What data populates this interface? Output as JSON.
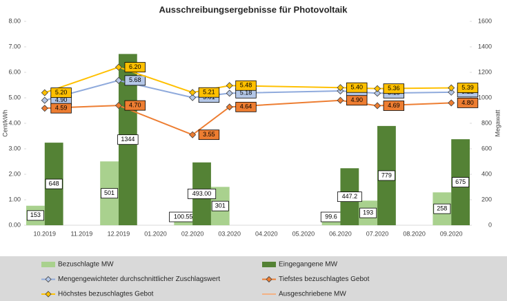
{
  "chart_data": {
    "type": "bar-line",
    "title": "Ausschreibungsergebnisse für Photovoltaik",
    "y_label": "Cent/kWh",
    "y2_label": "Megawatt",
    "categories": [
      "10.2019",
      "11.2019",
      "12.2019",
      "01.2020",
      "02.2020",
      "03.2020",
      "04.2020",
      "05.2020",
      "06.2020",
      "07.2020",
      "08.2020",
      "09.2020"
    ],
    "ylim": [
      0,
      8
    ],
    "yticks": [
      {
        "value": 0,
        "label": "0.00"
      },
      {
        "value": 1,
        "label": "1.00"
      },
      {
        "value": 2,
        "label": "2.00"
      },
      {
        "value": 3,
        "label": "3.00"
      },
      {
        "value": 4,
        "label": "4.00"
      },
      {
        "value": 5,
        "label": "5.00"
      },
      {
        "value": 6,
        "label": "6.00"
      },
      {
        "value": 7,
        "label": "7.00"
      },
      {
        "value": 8,
        "label": "8.00"
      }
    ],
    "y2lim": [
      0,
      1600
    ],
    "y2ticks": [
      0,
      200,
      400,
      600,
      800,
      1000,
      1200,
      1400,
      1600
    ],
    "connect_gaps": true,
    "series": [
      {
        "name": "Bezuschlagte MW",
        "kind": "bar",
        "axis": "y2",
        "color": "#a9d18e",
        "values": [
          153,
          null,
          501,
          null,
          100.55,
          301,
          null,
          null,
          99.6,
          193,
          null,
          258
        ]
      },
      {
        "name": "Eingegangene MW",
        "kind": "bar",
        "axis": "y2",
        "color": "#548235",
        "values": [
          648,
          null,
          1344,
          null,
          493,
          null,
          null,
          null,
          447.2,
          779,
          null,
          675
        ],
        "value_labels": [
          "648",
          null,
          "1344",
          null,
          "493.00",
          null,
          null,
          null,
          "447.2",
          "779",
          null,
          "675"
        ]
      },
      {
        "name": "Mengengewichteter durchschnittlicher Zuschlagswert",
        "kind": "line",
        "color": "#8faadc",
        "label_fill": "#b4c7e7",
        "values": [
          4.9,
          null,
          5.68,
          null,
          5.01,
          5.18,
          null,
          null,
          5.27,
          5.18,
          null,
          5.22
        ],
        "value_labels": [
          "4.90",
          null,
          "5.68",
          null,
          "5.01",
          "5.18",
          null,
          null,
          "5.27",
          "5.18",
          null,
          "5.22"
        ]
      },
      {
        "name": "Tiefstes bezuschlagtes Gebot",
        "kind": "line",
        "color": "#ed7d31",
        "label_fill": "#ed7d31",
        "values": [
          4.59,
          null,
          4.7,
          null,
          3.55,
          4.64,
          null,
          null,
          4.9,
          4.69,
          null,
          4.8
        ],
        "value_labels": [
          "4.59",
          null,
          "4.70",
          null,
          "3.55",
          "4.64",
          null,
          null,
          "4.90",
          "4.69",
          null,
          "4.80"
        ]
      },
      {
        "name": "Höchstes bezuschlagtes Gebot",
        "kind": "line",
        "color": "#ffc000",
        "label_fill": "#ffc000",
        "values": [
          5.2,
          null,
          6.2,
          null,
          5.21,
          5.48,
          null,
          null,
          5.4,
          5.36,
          null,
          5.39
        ],
        "value_labels": [
          "5.20",
          null,
          "6.20",
          null,
          "5.21",
          "5.48",
          null,
          null,
          "5.40",
          "5.36",
          null,
          "5.39"
        ]
      },
      {
        "name": "Ausgeschriebene MW",
        "kind": "line",
        "color": "#f4b183",
        "values": [
          null,
          null,
          null,
          null,
          null,
          null,
          null,
          null,
          null,
          null,
          null,
          null
        ]
      }
    ]
  }
}
